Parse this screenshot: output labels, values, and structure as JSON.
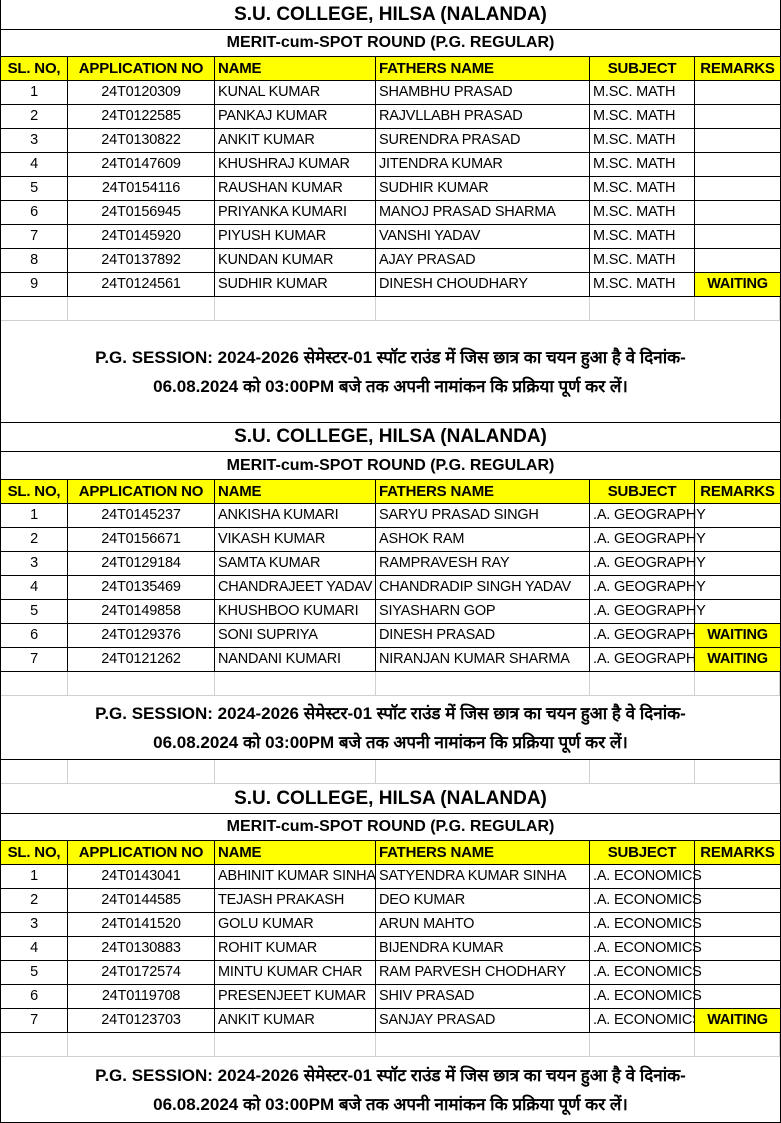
{
  "college": "S.U. COLLEGE, HILSA (NALANDA)",
  "round": "MERIT-cum-SPOT ROUND (P.G. REGULAR)",
  "headers": [
    "SL. NO,",
    "APPLICATION NO",
    "NAME",
    "FATHERS NAME",
    "SUBJECT",
    "REMARKS"
  ],
  "note_line1": "P.G. SESSION: 2024-2026 सेमेस्टर-01 स्पॉट राउंड में जिस छात्र का चयन हुआ है वे दिनांक-",
  "note_line2": "06.08.2024 को 03:00PM बजे तक अपनी नामांकन कि प्रक्रिया पूर्ण कर लें।",
  "colors": {
    "highlight": "#ffff00"
  },
  "sections": [
    {
      "rows": [
        [
          "1",
          "24T0120309",
          "KUNAL KUMAR",
          "SHAMBHU PRASAD",
          "M.SC. MATH",
          ""
        ],
        [
          "2",
          "24T0122585",
          "PANKAJ KUMAR",
          "RAJVLLABH PRASAD",
          "M.SC. MATH",
          ""
        ],
        [
          "3",
          "24T0130822",
          "ANKIT KUMAR",
          "SURENDRA PRASAD",
          "M.SC. MATH",
          ""
        ],
        [
          "4",
          "24T0147609",
          "KHUSHRAJ KUMAR",
          "JITENDRA KUMAR",
          "M.SC. MATH",
          ""
        ],
        [
          "5",
          "24T0154116",
          "RAUSHAN KUMAR",
          "SUDHIR KUMAR",
          "M.SC. MATH",
          ""
        ],
        [
          "6",
          "24T0156945",
          "PRIYANKA KUMARI",
          "MANOJ PRASAD SHARMA",
          "M.SC. MATH",
          ""
        ],
        [
          "7",
          "24T0145920",
          "PIYUSH KUMAR",
          "VANSHI YADAV",
          "M.SC. MATH",
          ""
        ],
        [
          "8",
          "24T0137892",
          "KUNDAN KUMAR",
          "AJAY PRASAD",
          "M.SC. MATH",
          ""
        ],
        [
          "9",
          "24T0124561",
          "SUDHIR KUMAR",
          "DINESH CHOUDHARY",
          "M.SC. MATH",
          "WAITING"
        ]
      ]
    },
    {
      "rows": [
        [
          "1",
          "24T0145237",
          "ANKISHA KUMARI",
          "SARYU PRASAD SINGH",
          ".A. GEOGRAPHY",
          ""
        ],
        [
          "2",
          "24T0156671",
          "VIKASH KUMAR",
          "ASHOK RAM",
          ".A. GEOGRAPHY",
          ""
        ],
        [
          "3",
          "24T0129184",
          "SAMTA KUMAR",
          "RAMPRAVESH RAY",
          ".A. GEOGRAPHY",
          ""
        ],
        [
          "4",
          "24T0135469",
          "CHANDRAJEET YADAV",
          "CHANDRADIP SINGH YADAV",
          ".A. GEOGRAPHY",
          ""
        ],
        [
          "5",
          "24T0149858",
          "KHUSHBOO KUMARI",
          "SIYASHARN GOP",
          ".A. GEOGRAPHY",
          ""
        ],
        [
          "6",
          "24T0129376",
          "SONI SUPRIYA",
          "DINESH PRASAD",
          ".A. GEOGRAPHY",
          "WAITING"
        ],
        [
          "7",
          "24T0121262",
          "NANDANI KUMARI",
          "NIRANJAN KUMAR SHARMA",
          ".A. GEOGRAPHY",
          "WAITING"
        ]
      ]
    },
    {
      "rows": [
        [
          "1",
          "24T0143041",
          "ABHINIT KUMAR SINHA",
          "SATYENDRA KUMAR SINHA",
          ".A. ECONOMICS",
          ""
        ],
        [
          "2",
          "24T0144585",
          "TEJASH PRAKASH",
          "DEO KUMAR",
          ".A. ECONOMICS",
          ""
        ],
        [
          "3",
          "24T0141520",
          "GOLU KUMAR",
          "ARUN MAHTO",
          ".A. ECONOMICS",
          ""
        ],
        [
          "4",
          "24T0130883",
          "ROHIT KUMAR",
          "BIJENDRA KUMAR",
          ".A. ECONOMICS",
          ""
        ],
        [
          "5",
          "24T0172574",
          "MINTU KUMAR CHAR",
          "RAM PARVESH CHODHARY",
          ".A. ECONOMICS",
          ""
        ],
        [
          "6",
          "24T0119708",
          "PRESENJEET KUMAR",
          "SHIV PRASAD",
          ".A. ECONOMICS",
          ""
        ],
        [
          "7",
          "24T0123703",
          "ANKIT KUMAR",
          "SANJAY PRASAD",
          ".A. ECONOMICS",
          "WAITING"
        ]
      ]
    }
  ]
}
